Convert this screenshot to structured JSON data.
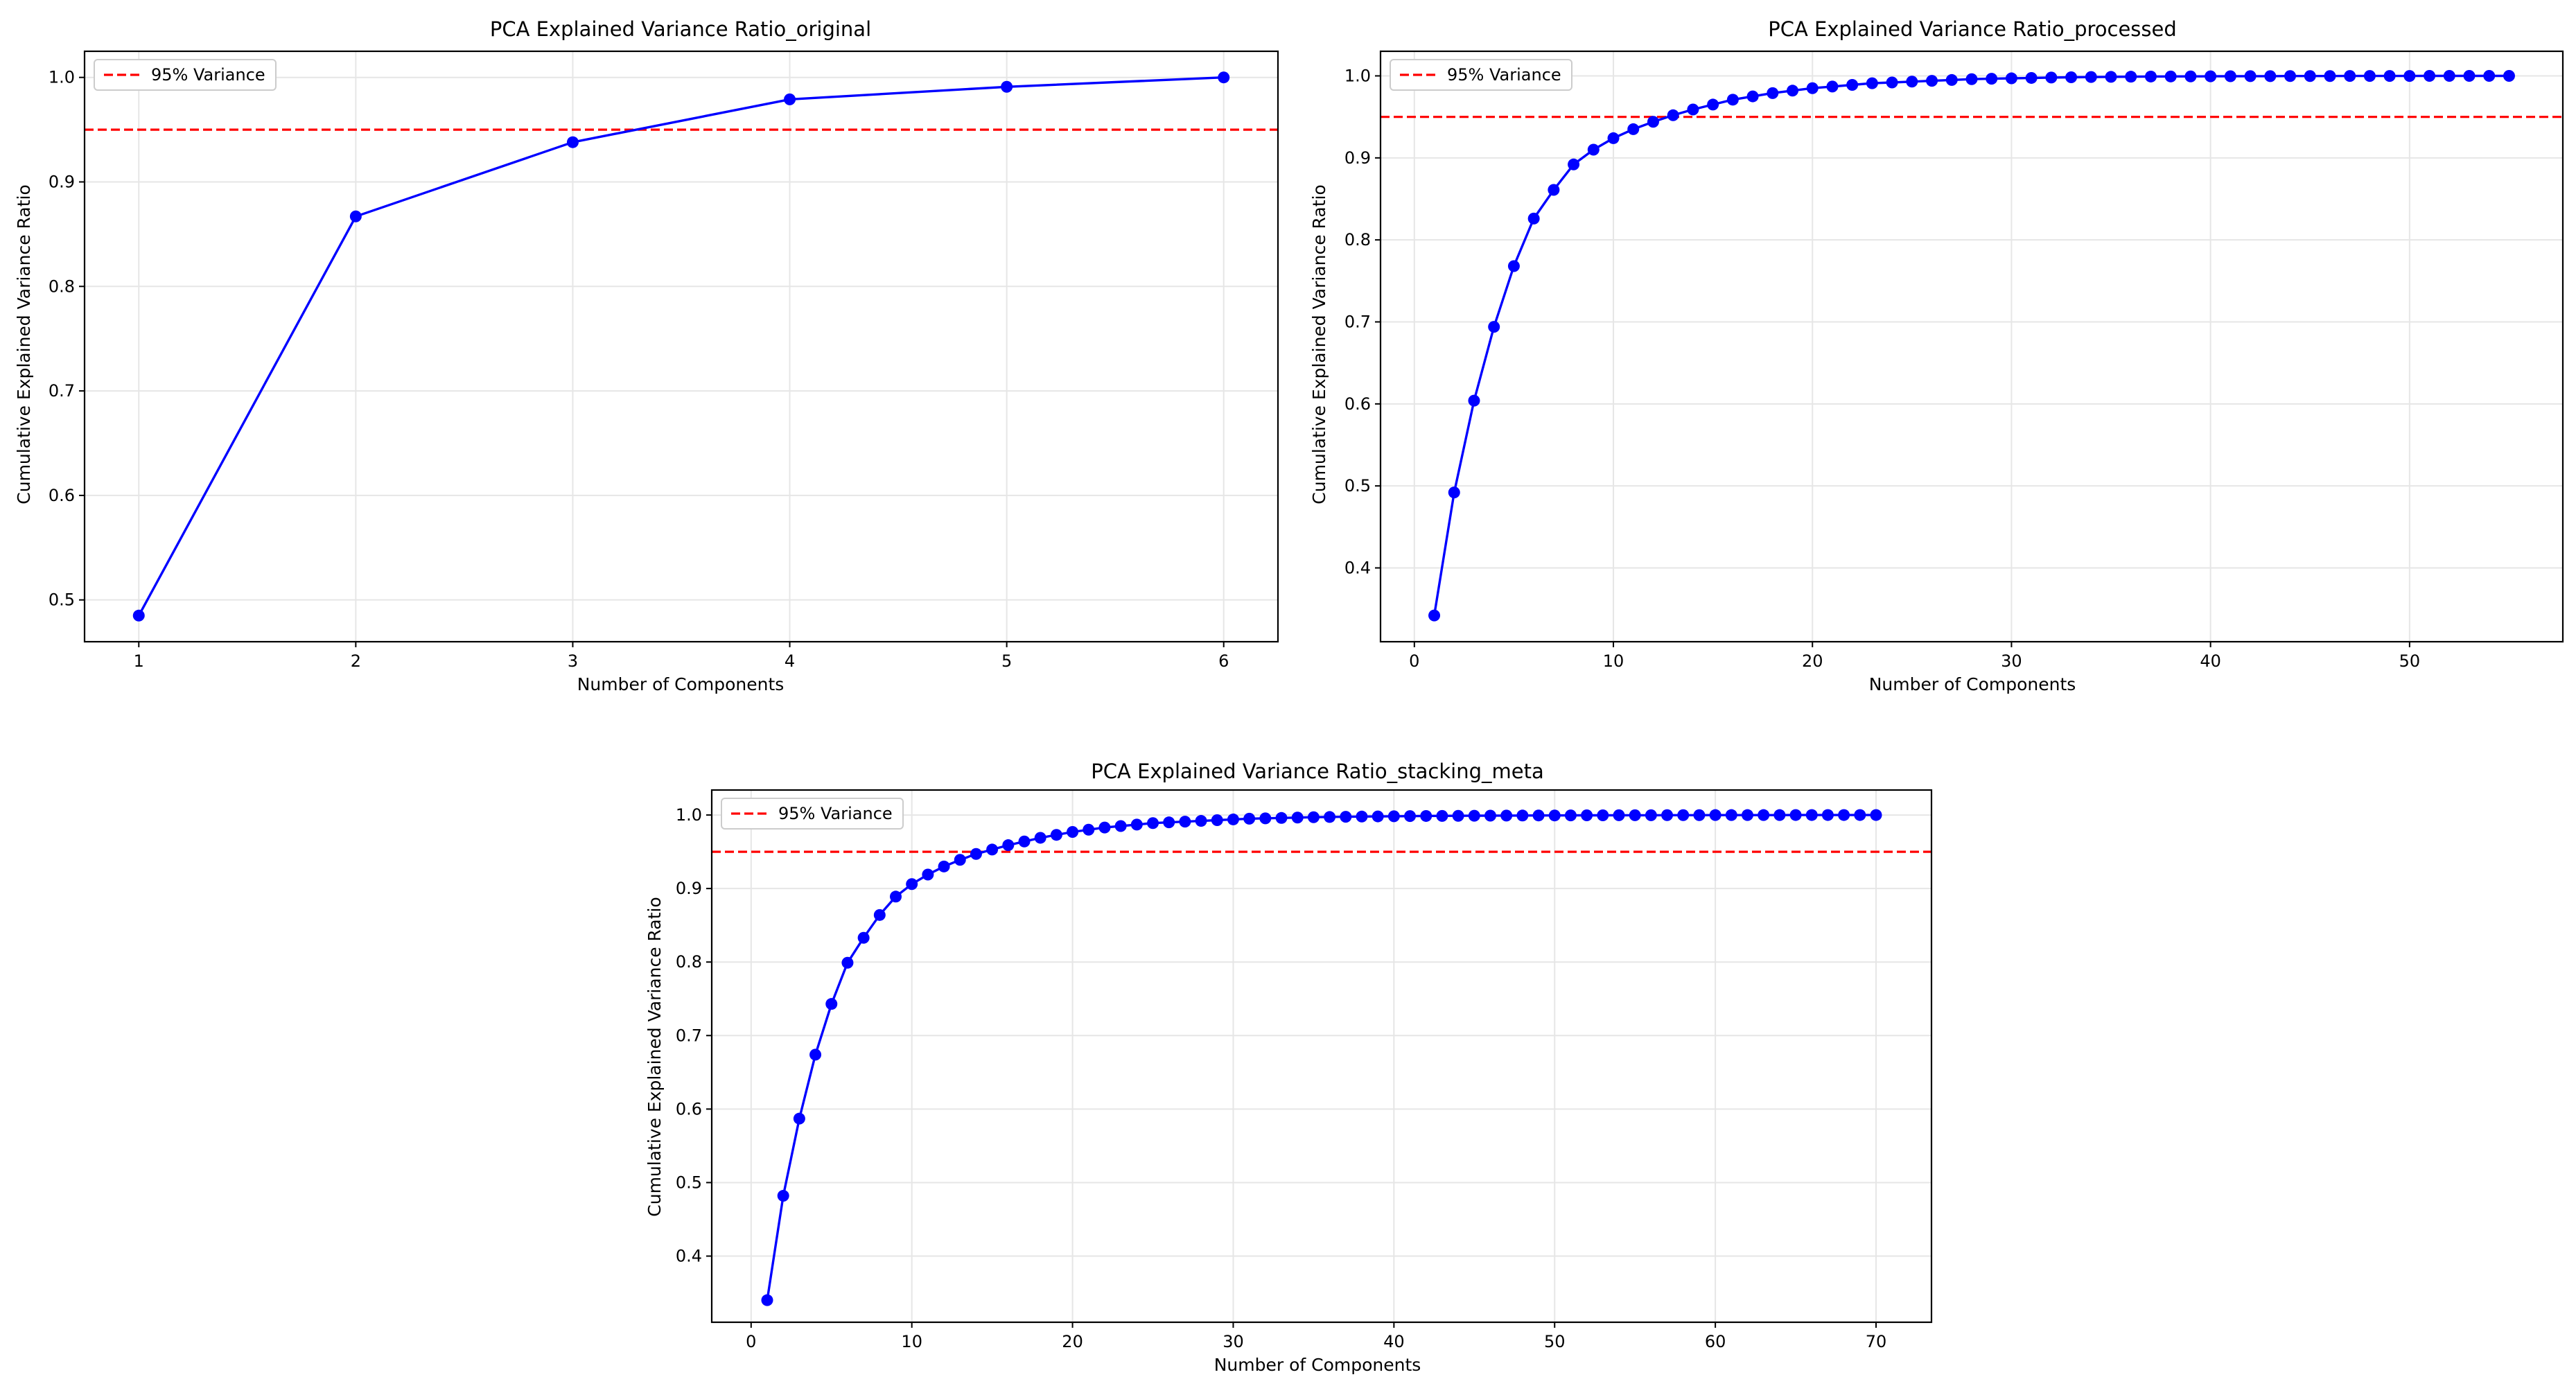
{
  "chart_data": [
    {
      "type": "line",
      "title": "PCA Explained Variance Ratio_original",
      "xlabel": "Number of Components",
      "ylabel": "Cumulative Explained Variance Ratio",
      "xlim": [
        0.75,
        6.25
      ],
      "ylim": [
        0.46,
        1.025
      ],
      "xticks": [
        1,
        2,
        3,
        4,
        5,
        6
      ],
      "yticks": [
        0.5,
        0.6,
        0.7,
        0.8,
        0.9,
        1.0
      ],
      "grid": true,
      "legend_position": "upper-left",
      "series": [
        {
          "name": "",
          "color": "#0000ff",
          "x": [
            1,
            2,
            3,
            4,
            5,
            6
          ],
          "y": [
            0.485,
            0.867,
            0.938,
            0.979,
            0.991,
            1.0
          ]
        }
      ],
      "reference_lines": [
        {
          "label": "95% Variance",
          "y": 0.95,
          "color": "#ff0000",
          "style": "dashed"
        }
      ]
    },
    {
      "type": "line",
      "title": "PCA Explained Variance Ratio_processed",
      "xlabel": "Number of Components",
      "ylabel": "Cumulative Explained Variance Ratio",
      "xlim": [
        -1.7,
        57.7
      ],
      "ylim": [
        0.31,
        1.03
      ],
      "xticks": [
        0,
        10,
        20,
        30,
        40,
        50
      ],
      "yticks": [
        0.4,
        0.5,
        0.6,
        0.7,
        0.8,
        0.9,
        1.0
      ],
      "grid": true,
      "legend_position": "upper-left",
      "series": [
        {
          "name": "",
          "color": "#0000ff",
          "x": [
            1,
            2,
            3,
            4,
            5,
            6,
            7,
            8,
            9,
            10,
            11,
            12,
            13,
            14,
            15,
            16,
            17,
            18,
            19,
            20,
            21,
            22,
            23,
            24,
            25,
            26,
            27,
            28,
            29,
            30,
            31,
            32,
            33,
            34,
            35,
            36,
            37,
            38,
            39,
            40,
            41,
            42,
            43,
            44,
            45,
            46,
            47,
            48,
            49,
            50,
            51,
            52,
            53,
            54,
            55
          ],
          "y": [
            0.342,
            0.492,
            0.604,
            0.694,
            0.768,
            0.826,
            0.861,
            0.892,
            0.91,
            0.924,
            0.935,
            0.944,
            0.952,
            0.959,
            0.965,
            0.971,
            0.975,
            0.979,
            0.982,
            0.985,
            0.987,
            0.989,
            0.991,
            0.992,
            0.993,
            0.994,
            0.995,
            0.996,
            0.9965,
            0.997,
            0.9975,
            0.998,
            0.9983,
            0.9986,
            0.9988,
            0.999,
            0.9992,
            0.9993,
            0.9994,
            0.9995,
            0.9996,
            0.9997,
            0.9997,
            0.9998,
            0.9998,
            0.9998,
            0.9999,
            0.9999,
            0.9999,
            0.9999,
            1.0,
            1.0,
            1.0,
            1.0,
            1.0
          ]
        }
      ],
      "reference_lines": [
        {
          "label": "95% Variance",
          "y": 0.95,
          "color": "#ff0000",
          "style": "dashed"
        }
      ]
    },
    {
      "type": "line",
      "title": "PCA Explained Variance Ratio_stacking_meta",
      "xlabel": "Number of Components",
      "ylabel": "Cumulative Explained Variance Ratio",
      "xlim": [
        -2.45,
        73.45
      ],
      "ylim": [
        0.31,
        1.034
      ],
      "xticks": [
        0,
        10,
        20,
        30,
        40,
        50,
        60,
        70
      ],
      "yticks": [
        0.4,
        0.5,
        0.6,
        0.7,
        0.8,
        0.9,
        1.0
      ],
      "grid": true,
      "legend_position": "upper-left",
      "series": [
        {
          "name": "",
          "color": "#0000ff",
          "x": [
            1,
            2,
            3,
            4,
            5,
            6,
            7,
            8,
            9,
            10,
            11,
            12,
            13,
            14,
            15,
            16,
            17,
            18,
            19,
            20,
            21,
            22,
            23,
            24,
            25,
            26,
            27,
            28,
            29,
            30,
            31,
            32,
            33,
            34,
            35,
            36,
            37,
            38,
            39,
            40,
            41,
            42,
            43,
            44,
            45,
            46,
            47,
            48,
            49,
            50,
            51,
            52,
            53,
            54,
            55,
            56,
            57,
            58,
            59,
            60,
            61,
            62,
            63,
            64,
            65,
            66,
            67,
            68,
            69,
            70
          ],
          "y": [
            0.34,
            0.482,
            0.587,
            0.674,
            0.743,
            0.799,
            0.833,
            0.864,
            0.889,
            0.906,
            0.919,
            0.93,
            0.939,
            0.947,
            0.953,
            0.959,
            0.964,
            0.969,
            0.973,
            0.977,
            0.98,
            0.983,
            0.985,
            0.987,
            0.989,
            0.99,
            0.991,
            0.992,
            0.993,
            0.994,
            0.995,
            0.9955,
            0.996,
            0.9965,
            0.997,
            0.9973,
            0.9976,
            0.9979,
            0.9981,
            0.9983,
            0.9985,
            0.9987,
            0.9988,
            0.9989,
            0.999,
            0.9991,
            0.9992,
            0.9993,
            0.9994,
            0.9994,
            0.9995,
            0.9996,
            0.9996,
            0.9997,
            0.9997,
            0.9997,
            0.9998,
            0.9998,
            0.9998,
            0.9999,
            0.9999,
            0.9999,
            0.9999,
            0.9999,
            1.0,
            1.0,
            1.0,
            1.0,
            1.0,
            1.0
          ]
        }
      ],
      "reference_lines": [
        {
          "label": "95% Variance",
          "y": 0.95,
          "color": "#ff0000",
          "style": "dashed"
        }
      ]
    }
  ]
}
